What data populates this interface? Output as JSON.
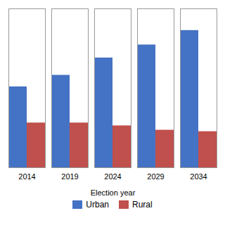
{
  "chart_data": {
    "type": "bar",
    "xlabel": "Election year",
    "categories": [
      "2014",
      "2019",
      "2024",
      "2029",
      "2034"
    ],
    "series": [
      {
        "name": "Urban",
        "color": "#4472C4",
        "values": [
          280,
          320,
          380,
          425,
          475
        ]
      },
      {
        "name": "Rural",
        "color": "#C0504D",
        "values": [
          155,
          155,
          145,
          130,
          125
        ]
      }
    ],
    "ylim": [
      0,
      550
    ],
    "yticks": [],
    "grid": false,
    "tick_labels": "x",
    "legend": "bottom"
  }
}
